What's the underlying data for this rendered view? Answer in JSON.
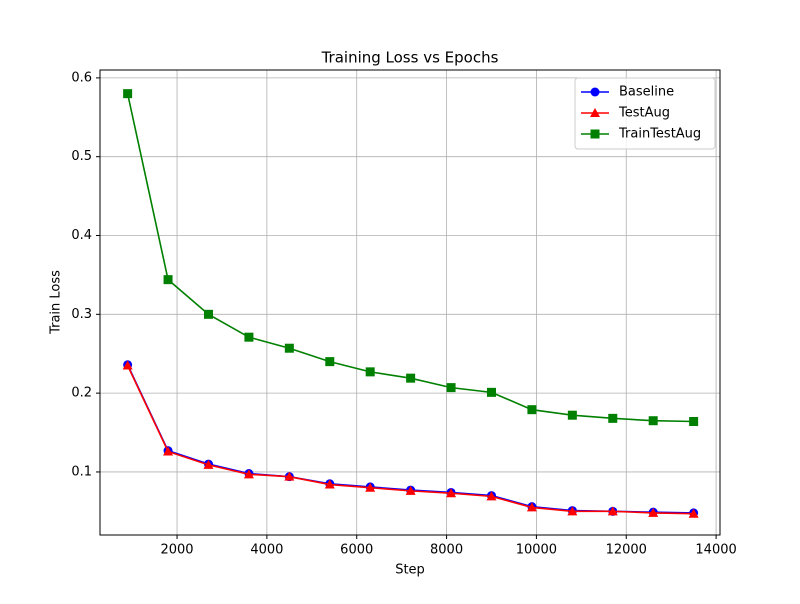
{
  "chart_data": {
    "type": "line",
    "title": "Training Loss vs Epochs",
    "x_label": "Step",
    "y_label": "Train Loss",
    "x": [
      900,
      1800,
      2700,
      3600,
      4500,
      5400,
      6300,
      7200,
      8100,
      9000,
      9900,
      10800,
      11700,
      12600,
      13500
    ],
    "series": [
      {
        "name": "Baseline",
        "color": "#0000ff",
        "marker": "circle",
        "values": [
          0.236,
          0.127,
          0.11,
          0.098,
          0.094,
          0.085,
          0.081,
          0.077,
          0.074,
          0.07,
          0.056,
          0.051,
          0.05,
          0.049,
          0.048
        ]
      },
      {
        "name": "TestAug",
        "color": "#ff0000",
        "marker": "triangle",
        "values": [
          0.235,
          0.126,
          0.109,
          0.097,
          0.094,
          0.084,
          0.08,
          0.076,
          0.073,
          0.069,
          0.055,
          0.05,
          0.05,
          0.048,
          0.047
        ]
      },
      {
        "name": "TrainTestAug",
        "color": "#008000",
        "marker": "square",
        "values": [
          0.58,
          0.344,
          0.3,
          0.271,
          0.257,
          0.24,
          0.227,
          0.219,
          0.207,
          0.201,
          0.179,
          0.172,
          0.168,
          0.165,
          0.164
        ]
      }
    ],
    "xlim": [
      285,
      14087
    ],
    "xticks": [
      2000,
      4000,
      6000,
      8000,
      10000,
      12000,
      14000
    ],
    "ylim": [
      0.02,
      0.61
    ],
    "yticks": [
      0.1,
      0.2,
      0.3,
      0.4,
      0.5,
      0.6
    ],
    "grid": true,
    "legend": "upper right"
  }
}
